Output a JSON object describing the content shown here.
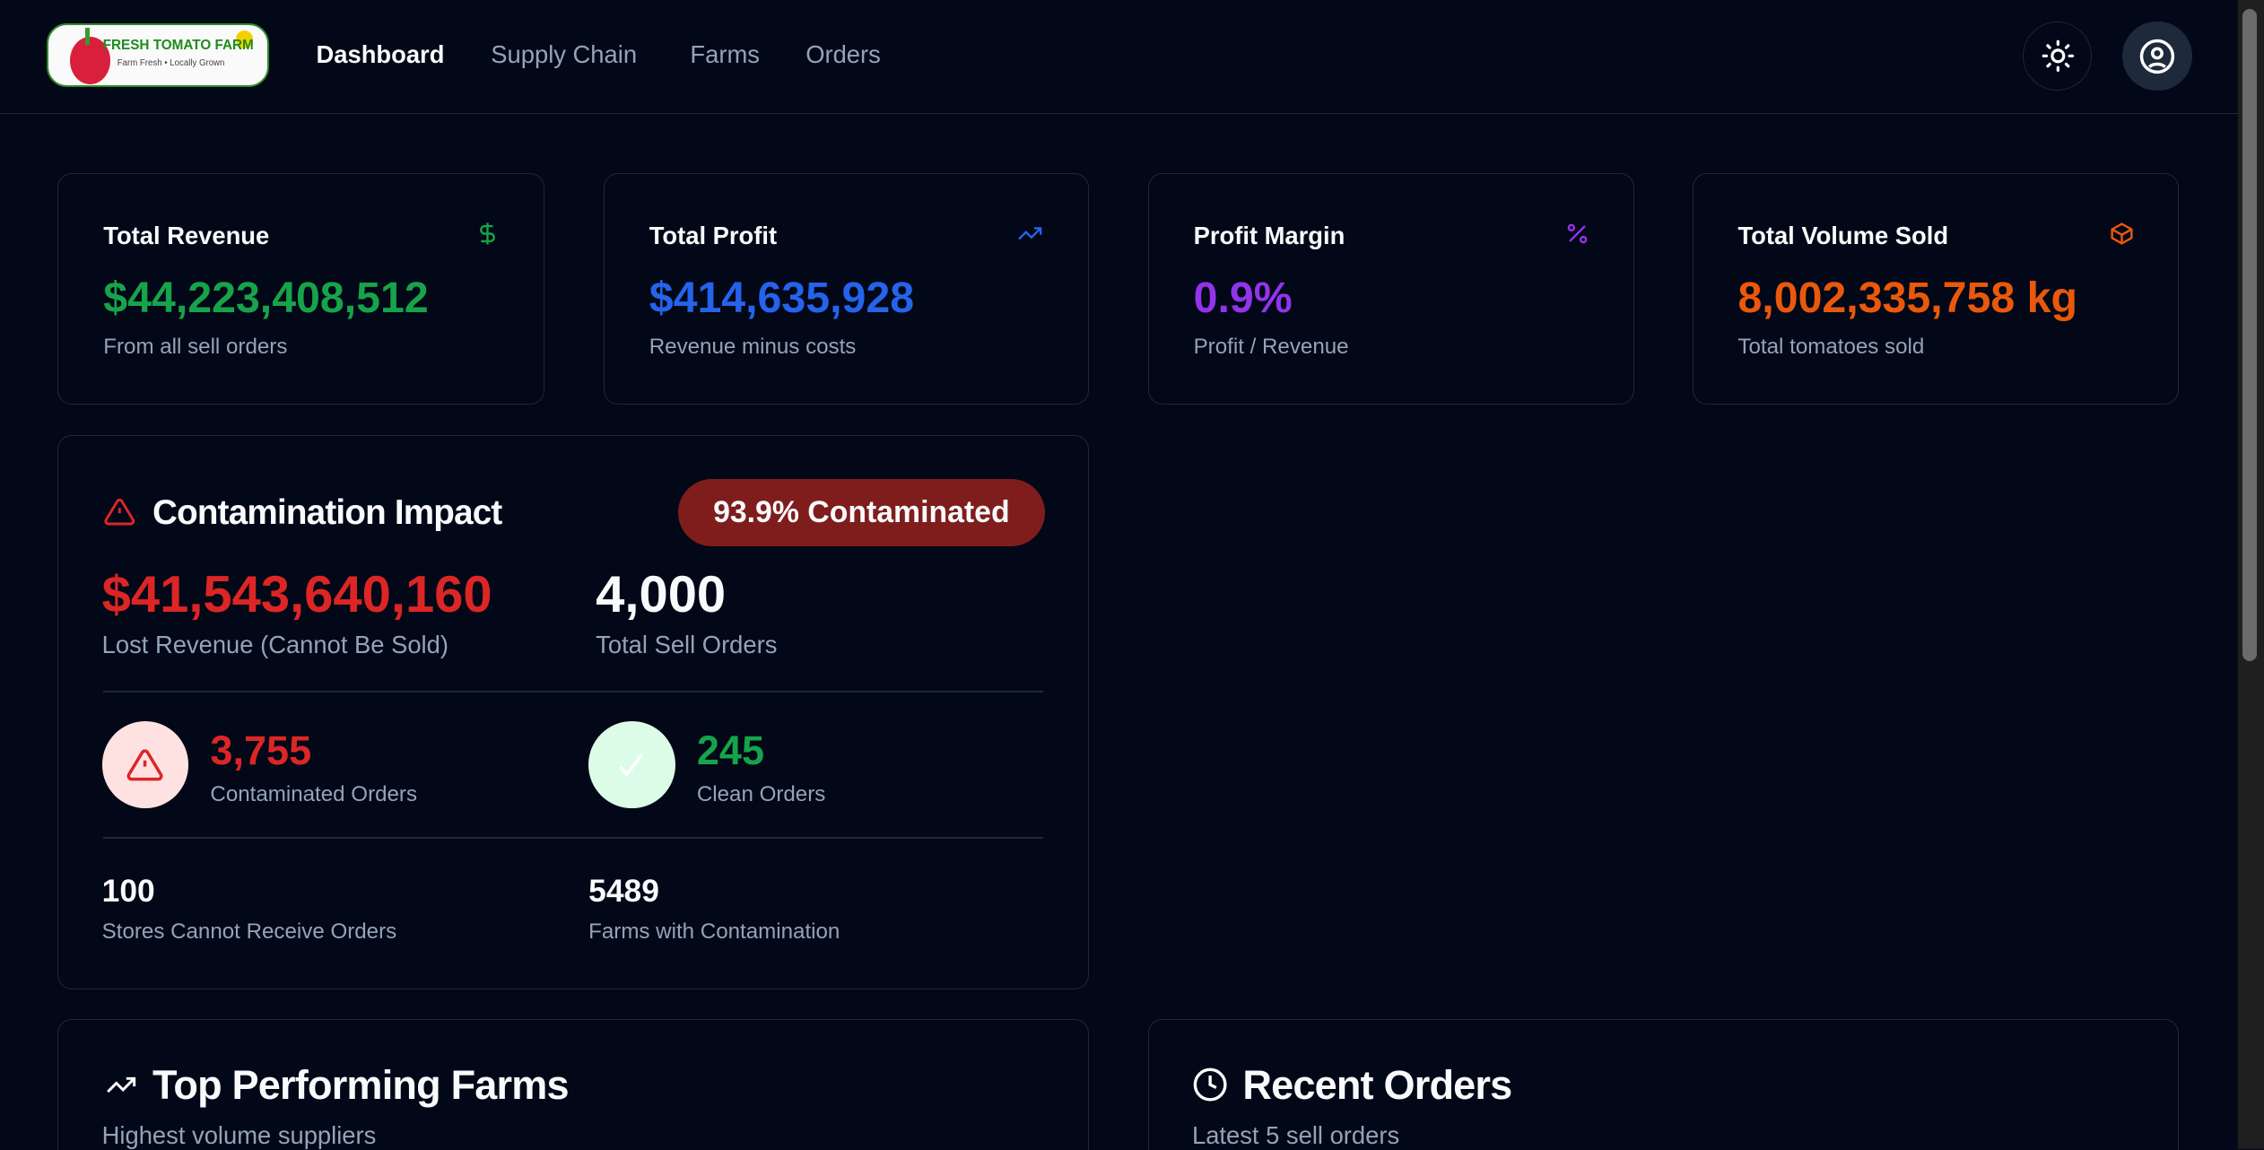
{
  "logo": {
    "title": "FRESH TOMATO FARM",
    "tagline": "Farm Fresh • Locally Grown"
  },
  "nav": [
    {
      "label": "Dashboard",
      "active": true
    },
    {
      "label": "Supply Chain"
    },
    {
      "label": "Farms"
    },
    {
      "label": "Orders"
    }
  ],
  "header_icons": {
    "theme": "sun-icon",
    "account": "user-circle-icon"
  },
  "stats": [
    {
      "title": "Total Revenue",
      "value": "$44,223,408,512",
      "sub": "From all sell orders",
      "icon": "dollar-icon",
      "color": "#16a34a"
    },
    {
      "title": "Total Profit",
      "value": "$414,635,928",
      "sub": "Revenue minus costs",
      "icon": "trending-up-icon",
      "color": "#2563eb"
    },
    {
      "title": "Profit Margin",
      "value": "0.9%",
      "sub": "Profit / Revenue",
      "icon": "percent-icon",
      "color": "#9333ea"
    },
    {
      "title": "Total Volume Sold",
      "value": "8,002,335,758 kg",
      "sub": "Total tomatoes sold",
      "icon": "package-icon",
      "color": "#ea580c"
    }
  ],
  "contamination": {
    "title": "Contamination Impact",
    "badge": "93.9% Contaminated",
    "lost_revenue": "$41,543,640,160",
    "lost_revenue_label": "Lost Revenue (Cannot Be Sold)",
    "total_orders": "4,000",
    "total_orders_label": "Total Sell Orders",
    "contaminated": "3,755",
    "contaminated_label": "Contaminated Orders",
    "clean": "245",
    "clean_label": "Clean Orders",
    "stores": "100",
    "stores_label": "Stores Cannot Receive Orders",
    "farms": "5489",
    "farms_label": "Farms with Contamination"
  },
  "top_farms": {
    "title": "Top Performing Farms",
    "subtitle": "Highest volume suppliers"
  },
  "recent_orders": {
    "title": "Recent Orders",
    "subtitle": "Latest 5 sell orders"
  }
}
